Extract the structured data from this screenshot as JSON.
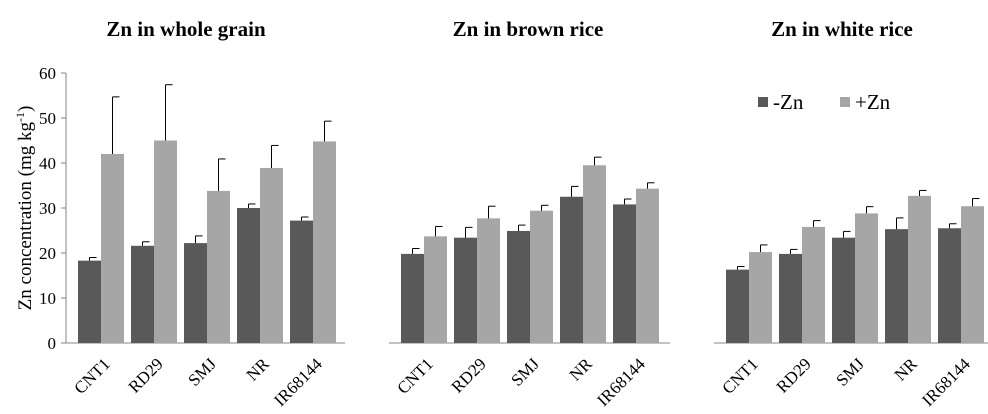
{
  "chart_data": {
    "type": "bar",
    "ylabel": "Zn concentration (mg kg-1)",
    "ylabel_main": "Zn concentration (mg kg",
    "ylabel_sup": "-1",
    "ylabel_close": ")",
    "ylim": [
      0,
      60
    ],
    "yticks": [
      "0",
      "10",
      "20",
      "30",
      "40",
      "50",
      "60"
    ],
    "legend": {
      "position": "top-right",
      "items": [
        {
          "name": "-Zn",
          "color": "#595959"
        },
        {
          "name": "+Zn",
          "color": "#a6a6a6"
        }
      ]
    },
    "grid": false,
    "categories": [
      "CNT1",
      "RD29",
      "SMJ",
      "NR",
      "IR68144"
    ],
    "panels": [
      {
        "title": "Zn in whole grain",
        "series": [
          {
            "name": "-Zn",
            "values": [
              18.3,
              21.6,
              22.2,
              30.0,
              27.2
            ],
            "errors": [
              0.7,
              0.9,
              1.6,
              0.9,
              0.8
            ]
          },
          {
            "name": "+Zn",
            "values": [
              42.0,
              45.0,
              33.8,
              38.9,
              44.8
            ],
            "errors": [
              12.7,
              12.4,
              7.1,
              5.0,
              4.5
            ]
          }
        ]
      },
      {
        "title": "Zn in brown rice",
        "series": [
          {
            "name": "-Zn",
            "values": [
              19.8,
              23.4,
              24.9,
              32.5,
              30.8
            ],
            "errors": [
              1.2,
              2.3,
              1.3,
              2.3,
              1.2
            ]
          },
          {
            "name": "+Zn",
            "values": [
              23.7,
              27.7,
              29.4,
              39.5,
              34.3
            ],
            "errors": [
              2.2,
              2.7,
              1.2,
              1.8,
              1.3
            ]
          }
        ]
      },
      {
        "title": "Zn in white rice",
        "series": [
          {
            "name": "-Zn",
            "values": [
              16.3,
              19.8,
              23.4,
              25.3,
              25.5
            ],
            "errors": [
              0.7,
              1.0,
              1.4,
              2.5,
              1.0
            ]
          },
          {
            "name": "+Zn",
            "values": [
              20.2,
              25.8,
              28.8,
              32.7,
              30.4
            ],
            "errors": [
              1.6,
              1.4,
              1.5,
              1.2,
              1.7
            ]
          }
        ]
      }
    ]
  }
}
